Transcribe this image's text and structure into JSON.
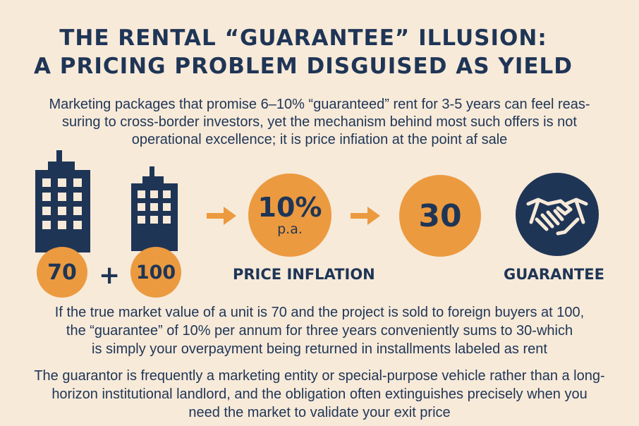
{
  "title": {
    "line1": "THE RENTAL “GUARANTEE” ILLUSION:",
    "line2": "A PRICING PROBLEM DISGUISED AS YIELD"
  },
  "intro": {
    "line1": "Marketing packages that promise 6–10% “guaranteed” rent for 3-5 years can feel reas-",
    "line2": "suring to cross-border investors, yet the mechanism behind most such offers is not",
    "line3": "operational excellence; it is price infiation at the point af sale"
  },
  "graphic": {
    "value_market": "70",
    "plus": "+",
    "value_price": "100",
    "rate_value": "10%",
    "rate_unit": "p.a.",
    "total": "30",
    "label_inflation": "PRICE INFLATION",
    "label_guarantee": "GUARANTEE",
    "icons": [
      "building-icon",
      "building-icon",
      "arrow-right-icon",
      "arrow-right-icon",
      "handshake-icon"
    ],
    "colors": {
      "navy": "#1f3556",
      "orange": "#ec9a3f",
      "background": "#f7ead9"
    }
  },
  "paragraph1": {
    "line1": "If the true market value of a unit is 70 and the project is sold to foreign buyers at 100,",
    "line2": "the “guarantee” of 10% per annum for three years conveniently sums to 30-which",
    "line3": "is simply your overpayment being returned in installments labeled as rent"
  },
  "paragraph2": {
    "line1": "The guarantor is frequently a marketing entity or special-purpose vehicle rather than a long-",
    "line2": "horizon institutional landlord, and the obligation often extinguishes precisely when you",
    "line3": "need the market to validate your exit price"
  }
}
